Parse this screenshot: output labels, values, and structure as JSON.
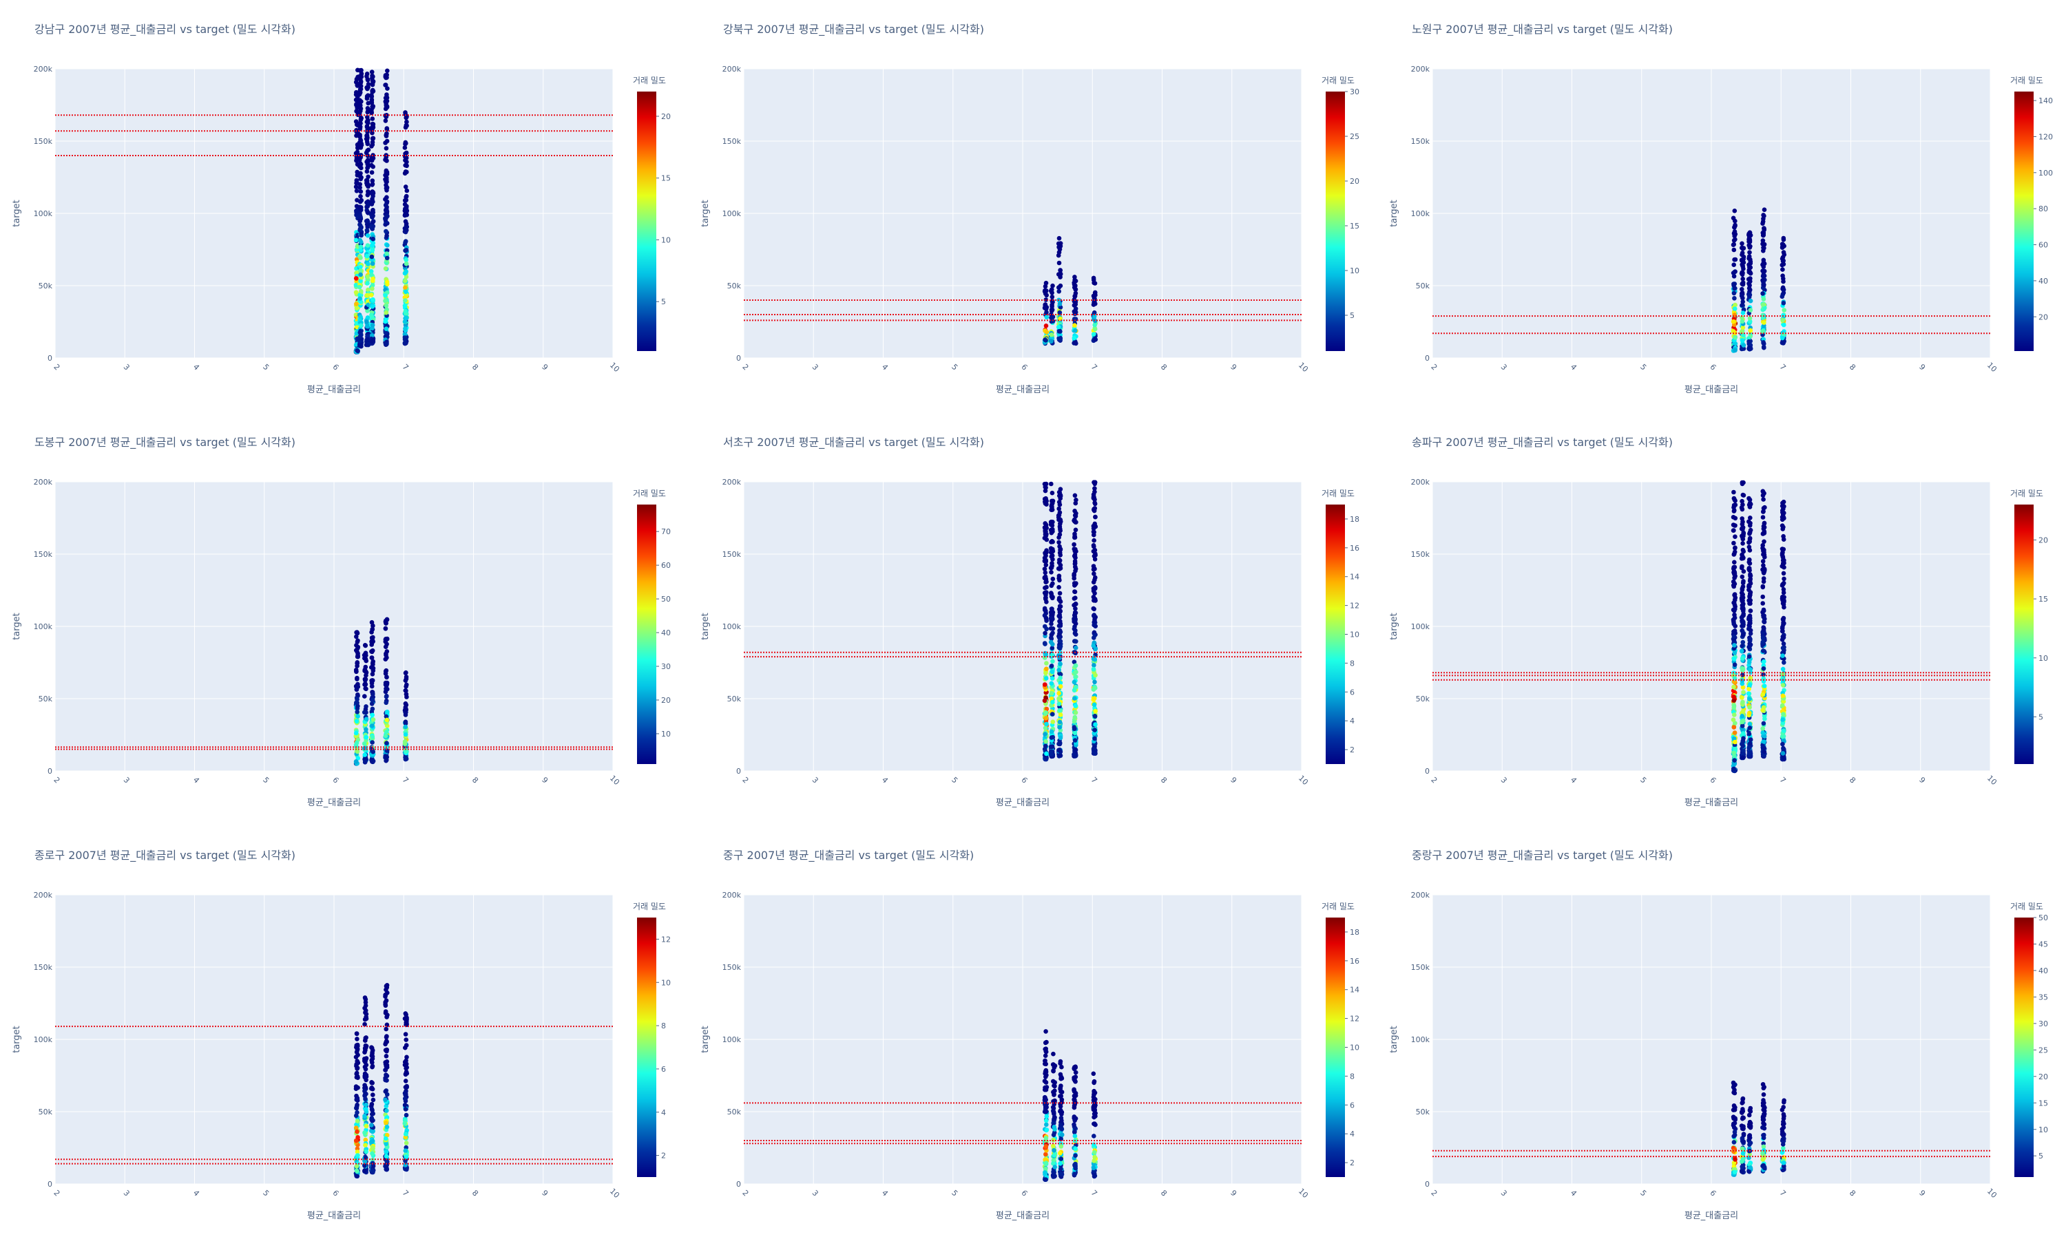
{
  "chart_data": [
    {
      "type": "scatter",
      "title": "강남구 2007년 평균_대출금리 vs target (밀도 시각화)",
      "xlabel": "평균_대출금리",
      "ylabel": "target",
      "xlim": [
        2,
        10
      ],
      "ylim": [
        0,
        200000
      ],
      "x_ticks": [
        "2",
        "3",
        "4",
        "5",
        "6",
        "7",
        "8",
        "9",
        "10"
      ],
      "y_ticks": [
        "0",
        "50k",
        "100k",
        "150k",
        "200k"
      ],
      "colorbar": {
        "title": "거래 밀도",
        "min": 1,
        "max": 22,
        "ticks": [
          5,
          10,
          15,
          20
        ]
      },
      "hlines": [
        140000,
        157000,
        168000
      ],
      "columns": [
        {
          "x": 6.33,
          "ymin": 4000,
          "ymax": 200000
        },
        {
          "x": 6.38,
          "ymin": 8000,
          "ymax": 200000
        },
        {
          "x": 6.48,
          "ymin": 9000,
          "ymax": 200000
        },
        {
          "x": 6.55,
          "ymin": 10000,
          "ymax": 200000
        },
        {
          "x": 6.75,
          "ymin": 9000,
          "ymax": 200000
        },
        {
          "x": 7.03,
          "ymin": 10000,
          "ymax": 175000
        }
      ]
    },
    {
      "type": "scatter",
      "title": "강북구 2007년 평균_대출금리 vs target (밀도 시각화)",
      "xlabel": "평균_대출금리",
      "ylabel": "target",
      "xlim": [
        2,
        10
      ],
      "ylim": [
        0,
        200000
      ],
      "x_ticks": [
        "2",
        "3",
        "4",
        "5",
        "6",
        "7",
        "8",
        "9",
        "10"
      ],
      "y_ticks": [
        "0",
        "50k",
        "100k",
        "150k",
        "200k"
      ],
      "colorbar": {
        "title": "거래 밀도",
        "min": 1,
        "max": 30,
        "ticks": [
          5,
          10,
          15,
          20,
          25,
          30
        ]
      },
      "hlines": [
        26000,
        30000,
        40000
      ],
      "columns": [
        {
          "x": 6.33,
          "ymin": 10000,
          "ymax": 53000
        },
        {
          "x": 6.42,
          "ymin": 10000,
          "ymax": 50000
        },
        {
          "x": 6.53,
          "ymin": 12000,
          "ymax": 83000
        },
        {
          "x": 6.75,
          "ymin": 10000,
          "ymax": 56000
        },
        {
          "x": 7.03,
          "ymin": 12000,
          "ymax": 56000
        }
      ]
    },
    {
      "type": "scatter",
      "title": "노원구 2007년 평균_대출금리 vs target (밀도 시각화)",
      "xlabel": "평균_대출금리",
      "ylabel": "target",
      "xlim": [
        2,
        10
      ],
      "ylim": [
        0,
        200000
      ],
      "x_ticks": [
        "2",
        "3",
        "4",
        "5",
        "6",
        "7",
        "8",
        "9",
        "10"
      ],
      "y_ticks": [
        "0",
        "50k",
        "100k",
        "150k",
        "200k"
      ],
      "colorbar": {
        "title": "거래 밀도",
        "min": 1,
        "max": 145,
        "ticks": [
          20,
          40,
          60,
          80,
          100,
          120,
          140
        ]
      },
      "hlines": [
        17000,
        29000
      ],
      "columns": [
        {
          "x": 6.33,
          "ymin": 5000,
          "ymax": 102000
        },
        {
          "x": 6.45,
          "ymin": 6000,
          "ymax": 80000
        },
        {
          "x": 6.55,
          "ymin": 6000,
          "ymax": 88000
        },
        {
          "x": 6.75,
          "ymin": 7000,
          "ymax": 104000
        },
        {
          "x": 7.03,
          "ymin": 10000,
          "ymax": 84000
        }
      ]
    },
    {
      "type": "scatter",
      "title": "도봉구 2007년 평균_대출금리 vs target (밀도 시각화)",
      "xlabel": "평균_대출금리",
      "ylabel": "target",
      "xlim": [
        2,
        10
      ],
      "ylim": [
        0,
        200000
      ],
      "x_ticks": [
        "2",
        "3",
        "4",
        "5",
        "6",
        "7",
        "8",
        "9",
        "10"
      ],
      "y_ticks": [
        "0",
        "50k",
        "100k",
        "150k",
        "200k"
      ],
      "colorbar": {
        "title": "거래 밀도",
        "min": 1,
        "max": 78,
        "ticks": [
          10,
          20,
          30,
          40,
          50,
          60,
          70
        ]
      },
      "hlines": [
        15000,
        16500
      ],
      "columns": [
        {
          "x": 6.33,
          "ymin": 5000,
          "ymax": 100000
        },
        {
          "x": 6.45,
          "ymin": 6000,
          "ymax": 90000
        },
        {
          "x": 6.55,
          "ymin": 6000,
          "ymax": 105000
        },
        {
          "x": 6.75,
          "ymin": 7000,
          "ymax": 105000
        },
        {
          "x": 7.03,
          "ymin": 8000,
          "ymax": 72000
        }
      ]
    },
    {
      "type": "scatter",
      "title": "서초구 2007년 평균_대출금리 vs target (밀도 시각화)",
      "xlabel": "평균_대출금리",
      "ylabel": "target",
      "xlim": [
        2,
        10
      ],
      "ylim": [
        0,
        200000
      ],
      "x_ticks": [
        "2",
        "3",
        "4",
        "5",
        "6",
        "7",
        "8",
        "9",
        "10"
      ],
      "y_ticks": [
        "0",
        "50k",
        "100k",
        "150k",
        "200k"
      ],
      "colorbar": {
        "title": "거래 밀도",
        "min": 1,
        "max": 19,
        "ticks": [
          2,
          4,
          6,
          8,
          10,
          12,
          14,
          16,
          18
        ]
      },
      "hlines": [
        79000,
        82000
      ],
      "columns": [
        {
          "x": 6.33,
          "ymin": 8000,
          "ymax": 200000
        },
        {
          "x": 6.42,
          "ymin": 10000,
          "ymax": 200000
        },
        {
          "x": 6.53,
          "ymin": 10000,
          "ymax": 195000
        },
        {
          "x": 6.75,
          "ymin": 10000,
          "ymax": 192000
        },
        {
          "x": 7.03,
          "ymin": 12000,
          "ymax": 200000
        }
      ]
    },
    {
      "type": "scatter",
      "title": "송파구 2007년 평균_대출금리 vs target (밀도 시각화)",
      "xlabel": "평균_대출금리",
      "ylabel": "target",
      "xlim": [
        2,
        10
      ],
      "ylim": [
        0,
        200000
      ],
      "x_ticks": [
        "2",
        "3",
        "4",
        "5",
        "6",
        "7",
        "8",
        "9",
        "10"
      ],
      "y_ticks": [
        "0",
        "50k",
        "100k",
        "150k",
        "200k"
      ],
      "colorbar": {
        "title": "거래 밀도",
        "min": 1,
        "max": 23,
        "ticks": [
          5,
          10,
          15,
          20
        ]
      },
      "hlines": [
        63000,
        66000,
        68000
      ],
      "columns": [
        {
          "x": 6.33,
          "ymin": 0,
          "ymax": 195000
        },
        {
          "x": 6.45,
          "ymin": 9000,
          "ymax": 200000
        },
        {
          "x": 6.55,
          "ymin": 10000,
          "ymax": 190000
        },
        {
          "x": 6.75,
          "ymin": 10000,
          "ymax": 195000
        },
        {
          "x": 7.03,
          "ymin": 8000,
          "ymax": 190000
        }
      ]
    },
    {
      "type": "scatter",
      "title": "종로구 2007년 평균_대출금리 vs target (밀도 시각화)",
      "xlabel": "평균_대출금리",
      "ylabel": "target",
      "xlim": [
        2,
        10
      ],
      "ylim": [
        0,
        200000
      ],
      "x_ticks": [
        "2",
        "3",
        "4",
        "5",
        "6",
        "7",
        "8",
        "9",
        "10"
      ],
      "y_ticks": [
        "0",
        "50k",
        "100k",
        "150k",
        "200k"
      ],
      "colorbar": {
        "title": "거래 밀도",
        "min": 1,
        "max": 13,
        "ticks": [
          2,
          4,
          6,
          8,
          10,
          12
        ]
      },
      "hlines": [
        14000,
        17000,
        109000
      ],
      "columns": [
        {
          "x": 6.33,
          "ymin": 5000,
          "ymax": 107000
        },
        {
          "x": 6.45,
          "ymin": 8000,
          "ymax": 130000
        },
        {
          "x": 6.55,
          "ymin": 8000,
          "ymax": 95000
        },
        {
          "x": 6.75,
          "ymin": 10000,
          "ymax": 138000
        },
        {
          "x": 7.03,
          "ymin": 10000,
          "ymax": 118000
        }
      ]
    },
    {
      "type": "scatter",
      "title": "중구 2007년 평균_대출금리 vs target (밀도 시각화)",
      "xlabel": "평균_대출금리",
      "ylabel": "target",
      "xlim": [
        2,
        10
      ],
      "ylim": [
        0,
        200000
      ],
      "x_ticks": [
        "2",
        "3",
        "4",
        "5",
        "6",
        "7",
        "8",
        "9",
        "10"
      ],
      "y_ticks": [
        "0",
        "50k",
        "100k",
        "150k",
        "200k"
      ],
      "colorbar": {
        "title": "거래 밀도",
        "min": 1,
        "max": 19,
        "ticks": [
          2,
          4,
          6,
          8,
          10,
          12,
          14,
          16,
          18
        ]
      },
      "hlines": [
        28000,
        30000,
        56000
      ],
      "columns": [
        {
          "x": 6.33,
          "ymin": 3000,
          "ymax": 106000
        },
        {
          "x": 6.45,
          "ymin": 5000,
          "ymax": 90000
        },
        {
          "x": 6.55,
          "ymin": 5000,
          "ymax": 85000
        },
        {
          "x": 6.75,
          "ymin": 6000,
          "ymax": 82000
        },
        {
          "x": 7.03,
          "ymin": 5000,
          "ymax": 77000
        }
      ]
    },
    {
      "type": "scatter",
      "title": "중랑구 2007년 평균_대출금리 vs target (밀도 시각화)",
      "xlabel": "평균_대출금리",
      "ylabel": "target",
      "xlim": [
        2,
        10
      ],
      "ylim": [
        0,
        200000
      ],
      "x_ticks": [
        "2",
        "3",
        "4",
        "5",
        "6",
        "7",
        "8",
        "9",
        "10"
      ],
      "y_ticks": [
        "0",
        "50k",
        "100k",
        "150k",
        "200k"
      ],
      "colorbar": {
        "title": "거래 밀도",
        "min": 1,
        "max": 50,
        "ticks": [
          5,
          10,
          15,
          20,
          25,
          30,
          35,
          40,
          45,
          50
        ]
      },
      "hlines": [
        19000,
        23000
      ],
      "columns": [
        {
          "x": 6.33,
          "ymin": 6000,
          "ymax": 70000
        },
        {
          "x": 6.45,
          "ymin": 8000,
          "ymax": 60000
        },
        {
          "x": 6.55,
          "ymin": 8000,
          "ymax": 55000
        },
        {
          "x": 6.75,
          "ymin": 8000,
          "ymax": 70000
        },
        {
          "x": 7.03,
          "ymin": 9000,
          "ymax": 58000
        }
      ]
    }
  ],
  "colors": {
    "plot_bg": "#e5ecf6",
    "grid": "#ffffff",
    "hline": "#e8101a",
    "text": "#4a5f7f"
  }
}
